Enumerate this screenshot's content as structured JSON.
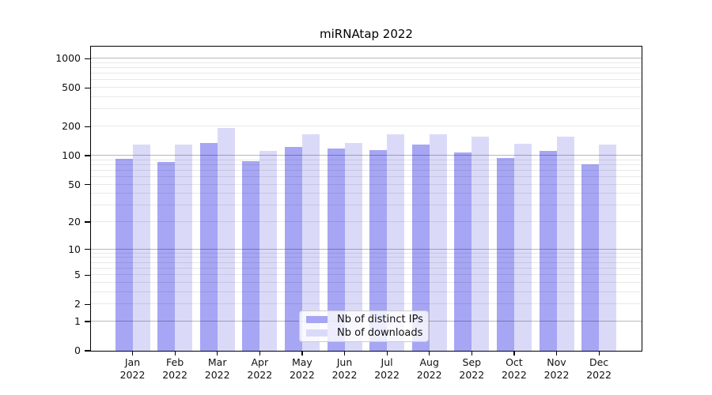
{
  "chart_data": {
    "type": "bar",
    "title": "miRNAtap 2022",
    "year_label": "2022",
    "categories": [
      "Jan",
      "Feb",
      "Mar",
      "Apr",
      "May",
      "Jun",
      "Jul",
      "Aug",
      "Sep",
      "Oct",
      "Nov",
      "Dec"
    ],
    "series": [
      {
        "name": "Nb of distinct IPs",
        "key": "distinct-ips",
        "color": "#a6a6f4",
        "values": [
          93,
          86,
          135,
          88,
          123,
          119,
          114,
          131,
          108,
          95,
          112,
          81
        ]
      },
      {
        "name": "Nb of downloads",
        "key": "downloads",
        "color": "#dadaf8",
        "values": [
          130,
          130,
          192,
          112,
          165,
          136,
          166,
          166,
          156,
          133,
          158,
          131
        ]
      }
    ],
    "xlabel": "",
    "ylabel": "",
    "yscale": "log1p",
    "yticks": [
      0,
      1,
      2,
      5,
      10,
      20,
      50,
      100,
      200,
      500,
      1000
    ],
    "ylim": [
      0,
      1300
    ],
    "grid": {
      "major_lines": [
        1,
        10,
        100,
        1000
      ],
      "minor_multipliers": [
        2,
        3,
        4,
        5,
        6,
        7,
        8,
        9
      ],
      "minor_decades": [
        1,
        10,
        100
      ]
    },
    "legend": {
      "position": "bottom-center",
      "entries": [
        "Nb of distinct IPs",
        "Nb of downloads"
      ]
    }
  },
  "colors": {
    "background": "#ffffff",
    "spine": "#000000",
    "text": "#111111",
    "major_grid": "rgba(0,0,0,0.28)",
    "minor_grid": "rgba(0,0,0,0.09)",
    "legend_border": "#cccccc",
    "legend_background": "rgba(255,255,255,0.8)",
    "bar_distinct_ips": "#a6a6f4",
    "bar_downloads": "#dadaf8"
  }
}
